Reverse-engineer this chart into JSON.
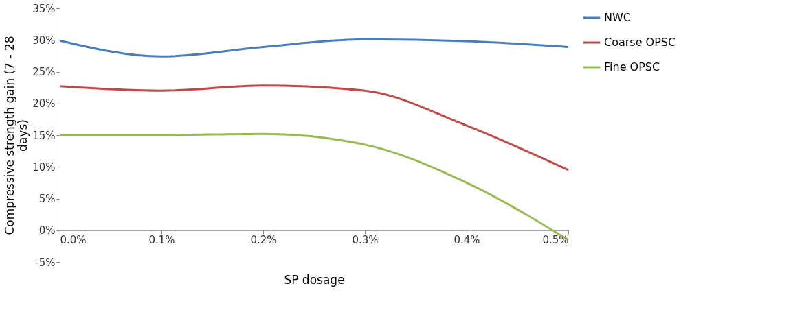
{
  "chart_data": {
    "type": "line",
    "xlabel": "SP dosage",
    "ylabel": "Compressive strength gain (7 - 28 days)",
    "categories": [
      "0.0%",
      "0.1%",
      "0.2%",
      "0.3%",
      "0.4%",
      "0.5%"
    ],
    "series": [
      {
        "name": "NWC",
        "color": "#4a7ebb",
        "values": [
          29.9,
          27.4,
          28.9,
          30.1,
          29.8,
          28.9
        ]
      },
      {
        "name": "Coarse OPSC",
        "color": "#be4b48",
        "values": [
          22.7,
          22.0,
          22.8,
          22.0,
          16.5,
          9.5
        ]
      },
      {
        "name": "Fine OPSC",
        "color": "#98b954",
        "values": [
          15.0,
          15.0,
          15.2,
          13.5,
          7.5,
          -1.5
        ]
      }
    ],
    "ylim": [
      -5,
      35
    ],
    "yticks": [
      {
        "value": -5,
        "label": "-5%"
      },
      {
        "value": 0,
        "label": "0%"
      },
      {
        "value": 5,
        "label": "5%"
      },
      {
        "value": 10,
        "label": "10%"
      },
      {
        "value": 15,
        "label": "15%"
      },
      {
        "value": 20,
        "label": "20%"
      },
      {
        "value": 25,
        "label": "25%"
      },
      {
        "value": 30,
        "label": "30%"
      },
      {
        "value": 35,
        "label": "35%"
      }
    ],
    "grid": false,
    "legend": "right",
    "marker": "none",
    "line_style": "solid"
  }
}
